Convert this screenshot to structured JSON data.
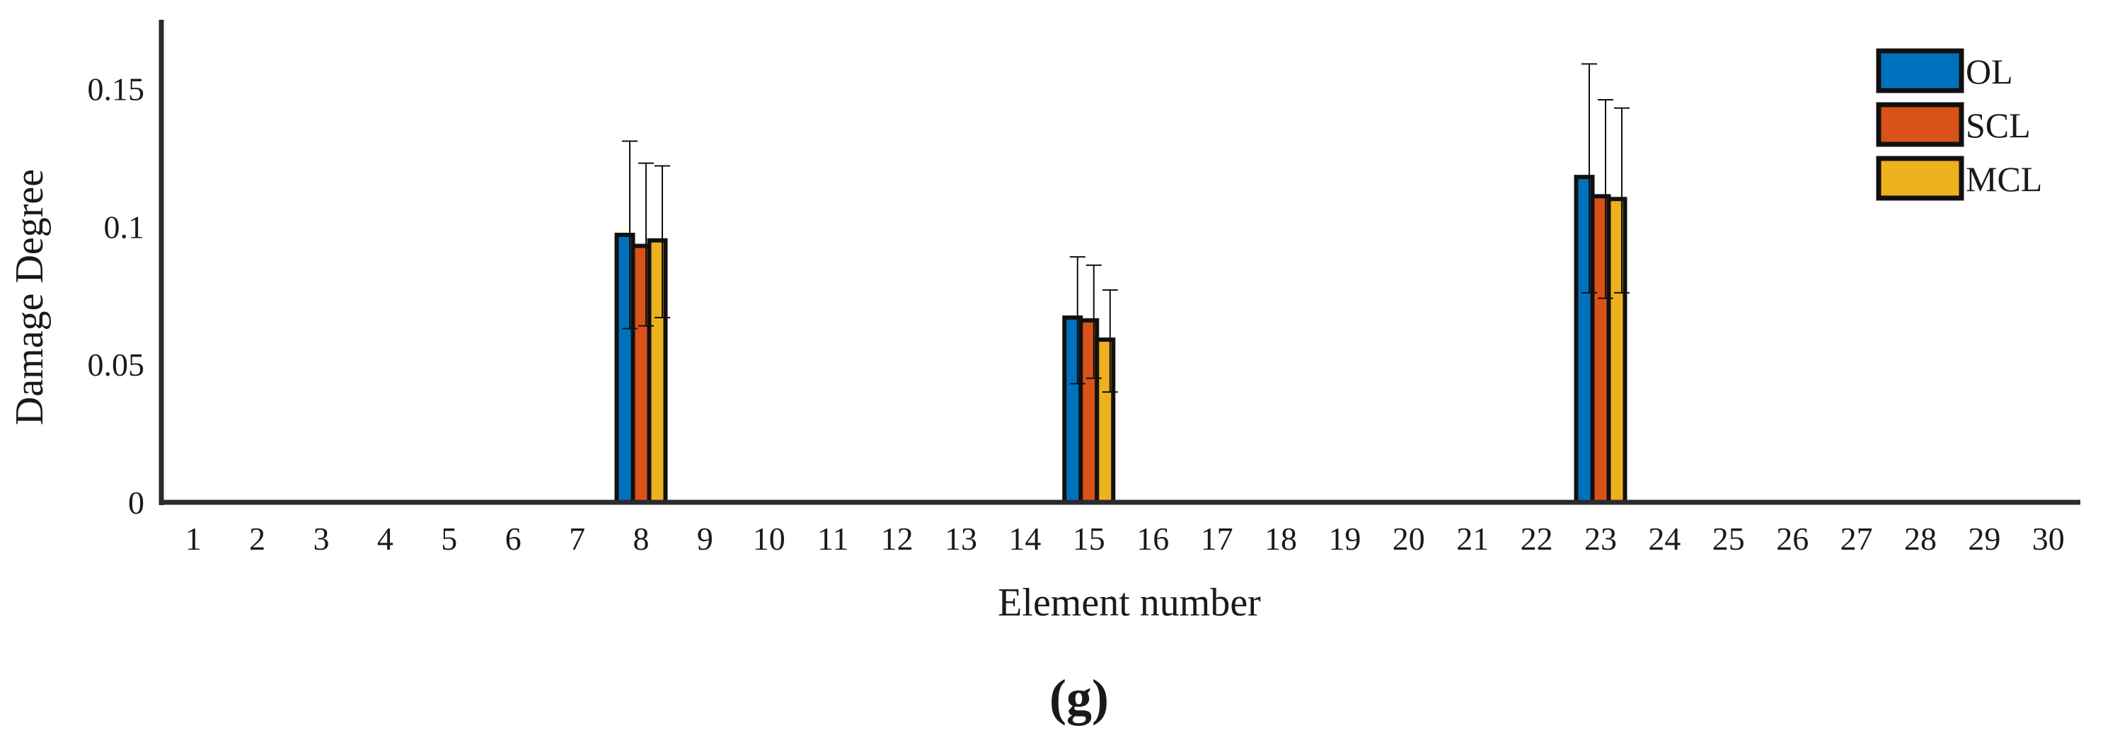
{
  "chart_data": {
    "type": "bar",
    "title": "",
    "xlabel": "Element number",
    "ylabel": "Damage Degree",
    "panel_label": "(g)",
    "categories": [
      "1",
      "2",
      "3",
      "4",
      "5",
      "6",
      "7",
      "8",
      "9",
      "10",
      "11",
      "12",
      "13",
      "14",
      "15",
      "16",
      "17",
      "18",
      "19",
      "20",
      "21",
      "22",
      "23",
      "24",
      "25",
      "26",
      "27",
      "28",
      "29",
      "30"
    ],
    "ylim": [
      0,
      0.175
    ],
    "yticks": [
      0,
      0.05,
      0.1,
      0.15
    ],
    "ytick_labels": [
      "0",
      "0.05",
      "0.1",
      "0.15"
    ],
    "grid": false,
    "legend_position": "top-right",
    "series": [
      {
        "name": "OL",
        "color": "#0072BD",
        "values": [
          0,
          0,
          0,
          0,
          0,
          0,
          0,
          0.097,
          0,
          0,
          0,
          0,
          0,
          0,
          0.067,
          0,
          0,
          0,
          0,
          0,
          0,
          0,
          0.118,
          0,
          0,
          0,
          0,
          0,
          0,
          0
        ],
        "err_upper": [
          0,
          0,
          0,
          0,
          0,
          0,
          0,
          0.131,
          0,
          0,
          0,
          0,
          0,
          0,
          0.089,
          0,
          0,
          0,
          0,
          0,
          0,
          0,
          0.159,
          0,
          0,
          0,
          0,
          0,
          0,
          0
        ],
        "err_lower": [
          0,
          0,
          0,
          0,
          0,
          0,
          0,
          0.063,
          0,
          0,
          0,
          0,
          0,
          0,
          0.043,
          0,
          0,
          0,
          0,
          0,
          0,
          0,
          0.076,
          0,
          0,
          0,
          0,
          0,
          0,
          0
        ]
      },
      {
        "name": "SCL",
        "color": "#D95319",
        "values": [
          0,
          0,
          0,
          0,
          0,
          0,
          0,
          0.093,
          0,
          0,
          0,
          0,
          0,
          0,
          0.066,
          0,
          0,
          0,
          0,
          0,
          0,
          0,
          0.111,
          0,
          0,
          0,
          0,
          0,
          0,
          0
        ],
        "err_upper": [
          0,
          0,
          0,
          0,
          0,
          0,
          0,
          0.123,
          0,
          0,
          0,
          0,
          0,
          0,
          0.086,
          0,
          0,
          0,
          0,
          0,
          0,
          0,
          0.146,
          0,
          0,
          0,
          0,
          0,
          0,
          0
        ],
        "err_lower": [
          0,
          0,
          0,
          0,
          0,
          0,
          0,
          0.064,
          0,
          0,
          0,
          0,
          0,
          0,
          0.045,
          0,
          0,
          0,
          0,
          0,
          0,
          0,
          0.074,
          0,
          0,
          0,
          0,
          0,
          0,
          0
        ]
      },
      {
        "name": "MCL",
        "color": "#EDB120",
        "values": [
          0,
          0,
          0,
          0,
          0,
          0,
          0,
          0.095,
          0,
          0,
          0,
          0,
          0,
          0,
          0.059,
          0,
          0,
          0,
          0,
          0,
          0,
          0,
          0.11,
          0,
          0,
          0,
          0,
          0,
          0,
          0
        ],
        "err_upper": [
          0,
          0,
          0,
          0,
          0,
          0,
          0,
          0.122,
          0,
          0,
          0,
          0,
          0,
          0,
          0.077,
          0,
          0,
          0,
          0,
          0,
          0,
          0,
          0.143,
          0,
          0,
          0,
          0,
          0,
          0,
          0
        ],
        "err_lower": [
          0,
          0,
          0,
          0,
          0,
          0,
          0,
          0.067,
          0,
          0,
          0,
          0,
          0,
          0,
          0.04,
          0,
          0,
          0,
          0,
          0,
          0,
          0,
          0.076,
          0,
          0,
          0,
          0,
          0,
          0,
          0
        ]
      }
    ]
  }
}
